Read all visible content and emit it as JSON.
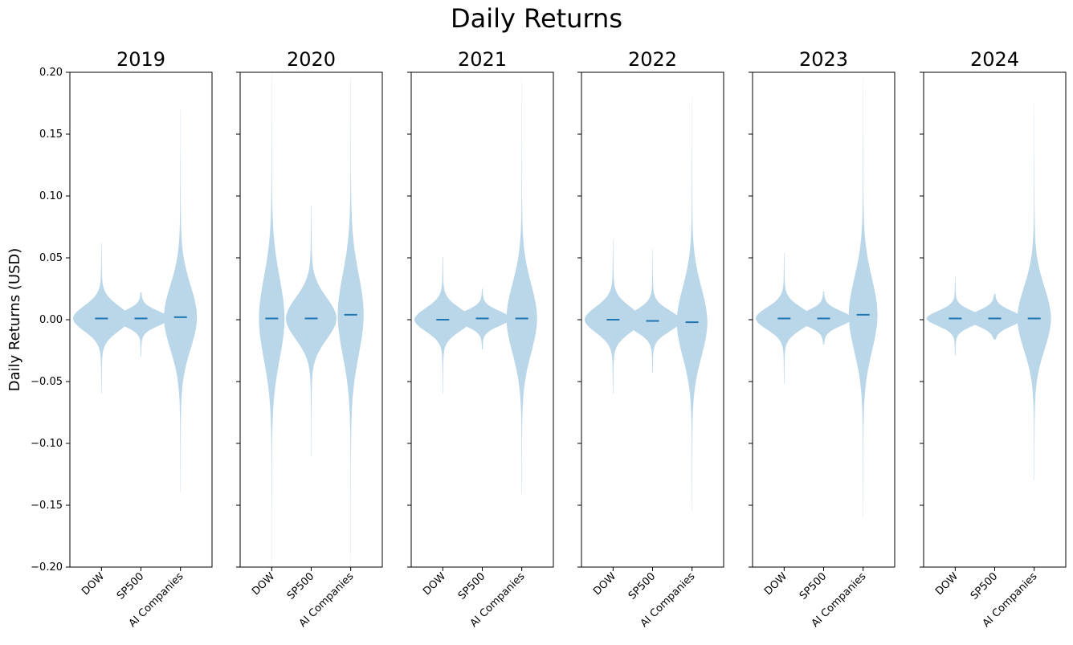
{
  "figure": {
    "title": "Daily Returns"
  },
  "chart_data": {
    "type": "violin",
    "ylabel": "Daily Returns (USD)",
    "ylim": [
      -0.2,
      0.2
    ],
    "yticks": [
      -0.2,
      -0.15,
      -0.1,
      -0.05,
      0.0,
      0.05,
      0.1,
      0.15,
      0.2
    ],
    "ytick_labels": [
      "−0.20",
      "−0.15",
      "−0.10",
      "−0.05",
      "0.00",
      "0.05",
      "0.10",
      "0.15",
      "0.20"
    ],
    "categories": [
      "DOW",
      "SP500",
      "AI Companies"
    ],
    "grid": false,
    "colors": {
      "violin_fill": "#bad6e9",
      "median_line": "#1f77b4",
      "axis": "#000000"
    },
    "panels": [
      {
        "title": "2019",
        "violins": [
          {
            "category": "DOW",
            "min": -0.06,
            "max": 0.062,
            "median": 0.001
          },
          {
            "category": "SP500",
            "min": -0.03,
            "max": 0.022,
            "median": 0.001
          },
          {
            "category": "AI Companies",
            "min": -0.14,
            "max": 0.17,
            "median": 0.002
          }
        ]
      },
      {
        "title": "2020",
        "violins": [
          {
            "category": "DOW",
            "min": -0.2,
            "max": 0.2,
            "median": 0.001
          },
          {
            "category": "SP500",
            "min": -0.11,
            "max": 0.092,
            "median": 0.001
          },
          {
            "category": "AI Companies",
            "min": -0.2,
            "max": 0.195,
            "median": 0.004
          }
        ]
      },
      {
        "title": "2021",
        "violins": [
          {
            "category": "DOW",
            "min": -0.06,
            "max": 0.051,
            "median": 0.0
          },
          {
            "category": "SP500",
            "min": -0.024,
            "max": 0.025,
            "median": 0.001
          },
          {
            "category": "AI Companies",
            "min": -0.14,
            "max": 0.195,
            "median": 0.001
          }
        ]
      },
      {
        "title": "2022",
        "violins": [
          {
            "category": "DOW",
            "min": -0.06,
            "max": 0.064,
            "median": 0.0
          },
          {
            "category": "SP500",
            "min": -0.043,
            "max": 0.057,
            "median": -0.001
          },
          {
            "category": "AI Companies",
            "min": -0.155,
            "max": 0.18,
            "median": -0.002
          }
        ]
      },
      {
        "title": "2023",
        "violins": [
          {
            "category": "DOW",
            "min": -0.052,
            "max": 0.054,
            "median": 0.001
          },
          {
            "category": "SP500",
            "min": -0.02,
            "max": 0.023,
            "median": 0.001
          },
          {
            "category": "AI Companies",
            "min": -0.16,
            "max": 0.195,
            "median": 0.004
          }
        ]
      },
      {
        "title": "2024",
        "violins": [
          {
            "category": "DOW",
            "min": -0.029,
            "max": 0.035,
            "median": 0.001
          },
          {
            "category": "SP500",
            "min": -0.016,
            "max": 0.021,
            "median": 0.001
          },
          {
            "category": "AI Companies",
            "min": -0.13,
            "max": 0.175,
            "median": 0.001
          }
        ]
      }
    ]
  }
}
